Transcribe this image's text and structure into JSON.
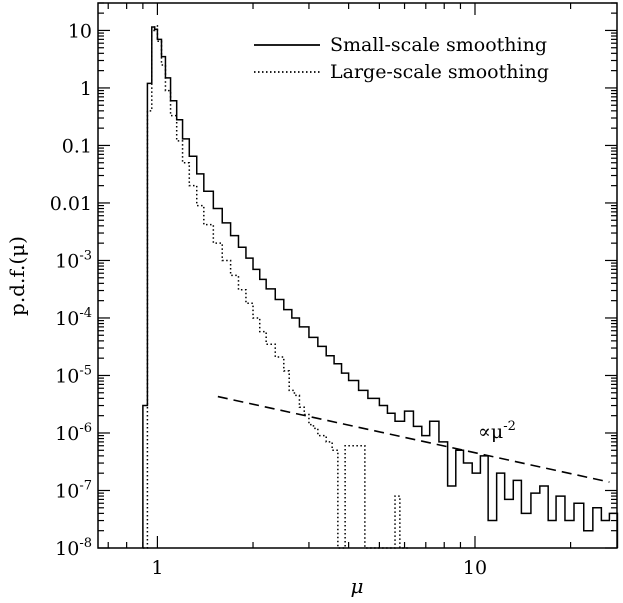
{
  "chart_data": {
    "type": "line",
    "xscale": "log",
    "yscale": "log",
    "xlim": [
      0.65,
      28
    ],
    "ylim": [
      1e-08,
      30
    ],
    "xlabel": "μ",
    "ylabel": "p.d.f.(μ)",
    "x_ticks": [
      {
        "value": 1,
        "label": "1"
      },
      {
        "value": 10,
        "label": "10"
      }
    ],
    "y_ticks": [
      {
        "value": 10,
        "label": "10",
        "sup": ""
      },
      {
        "value": 1,
        "label": "1",
        "sup": ""
      },
      {
        "value": 0.1,
        "label": "0.1",
        "sup": ""
      },
      {
        "value": 0.01,
        "label": "0.01",
        "sup": ""
      },
      {
        "value": 0.001,
        "label": "10",
        "sup": "-3"
      },
      {
        "value": 0.0001,
        "label": "10",
        "sup": "-4"
      },
      {
        "value": 1e-05,
        "label": "10",
        "sup": "-5"
      },
      {
        "value": 1e-06,
        "label": "10",
        "sup": "-6"
      },
      {
        "value": 1e-07,
        "label": "10",
        "sup": "-7"
      },
      {
        "value": 1e-08,
        "label": "10",
        "sup": "-8"
      }
    ],
    "legend_position": "top-right",
    "series": [
      {
        "name": "Small-scale smoothing",
        "style": "solid",
        "x": [
          0.9,
          0.93,
          0.96,
          0.98,
          1.0,
          1.03,
          1.06,
          1.1,
          1.15,
          1.2,
          1.26,
          1.33,
          1.4,
          1.5,
          1.6,
          1.7,
          1.8,
          1.9,
          2.0,
          2.1,
          2.2,
          2.35,
          2.5,
          2.65,
          2.8,
          3.0,
          3.2,
          3.4,
          3.6,
          3.8,
          4.0,
          4.3,
          4.6,
          5.0,
          5.3,
          5.6,
          6.0,
          6.4,
          6.8,
          7.2,
          7.7,
          8.2,
          8.7,
          9.2,
          9.8,
          10.4,
          11.0,
          11.7,
          12.4,
          13.2,
          14.0,
          15.0,
          16.0,
          17.0,
          18.0,
          19.2,
          20.5,
          22.0,
          23.5,
          25.0,
          26.5
        ],
        "y": [
          3e-06,
          1.2,
          11.5,
          10.5,
          7.0,
          3.5,
          1.5,
          0.6,
          0.28,
          0.13,
          0.065,
          0.032,
          0.016,
          0.008,
          0.0045,
          0.0027,
          0.0017,
          0.0011,
          0.0007,
          0.00047,
          0.00032,
          0.00021,
          0.00014,
          0.0001,
          7e-05,
          4.6e-05,
          3.2e-05,
          2.2e-05,
          1.6e-05,
          1.1e-05,
          8.2e-06,
          5.5e-06,
          4e-06,
          3e-06,
          2.2e-06,
          1.6e-06,
          2.4e-06,
          1.3e-06,
          9e-07,
          1.6e-06,
          7e-07,
          1.2e-07,
          5e-07,
          3e-07,
          2e-07,
          4e-07,
          3e-08,
          2e-07,
          7e-08,
          1.5e-07,
          4e-08,
          9e-08,
          1.2e-07,
          3e-08,
          8e-08,
          3e-08,
          6e-08,
          2e-08,
          5e-08,
          3e-08,
          4e-08
        ]
      },
      {
        "name": "Large-scale smoothing",
        "style": "dotted",
        "x": [
          0.9,
          0.93,
          0.96,
          0.98,
          1.0,
          1.03,
          1.06,
          1.1,
          1.15,
          1.2,
          1.26,
          1.33,
          1.4,
          1.5,
          1.6,
          1.7,
          1.8,
          1.9,
          2.0,
          2.1,
          2.2,
          2.35,
          2.5,
          2.6,
          2.7,
          2.8,
          2.9,
          3.0,
          3.1,
          3.2,
          3.4,
          3.55,
          3.7,
          3.9,
          4.2,
          4.5,
          5.0,
          5.4,
          5.6,
          5.8
        ],
        "y": [
          1e-08,
          0.4,
          10.0,
          12.0,
          6.5,
          2.5,
          0.9,
          0.33,
          0.12,
          0.05,
          0.02,
          0.009,
          0.0042,
          0.002,
          0.001,
          0.00055,
          0.00031,
          0.00018,
          0.0001,
          5.8e-05,
          3.5e-05,
          2.1e-05,
          1.2e-05,
          5.5e-06,
          4.5e-06,
          2.8e-06,
          2.1e-06,
          1.4e-06,
          1.2e-06,
          9e-07,
          7e-07,
          5e-07,
          1e-08,
          6e-07,
          6e-07,
          1e-08,
          1e-08,
          1e-08,
          8e-08,
          1e-08
        ]
      }
    ],
    "reference_line": {
      "style": "dashed",
      "label": "∝μ",
      "label_sup": "-2",
      "x": [
        1.55,
        26.5
      ],
      "y": [
        4.3e-06,
        1.4e-07
      ]
    }
  }
}
